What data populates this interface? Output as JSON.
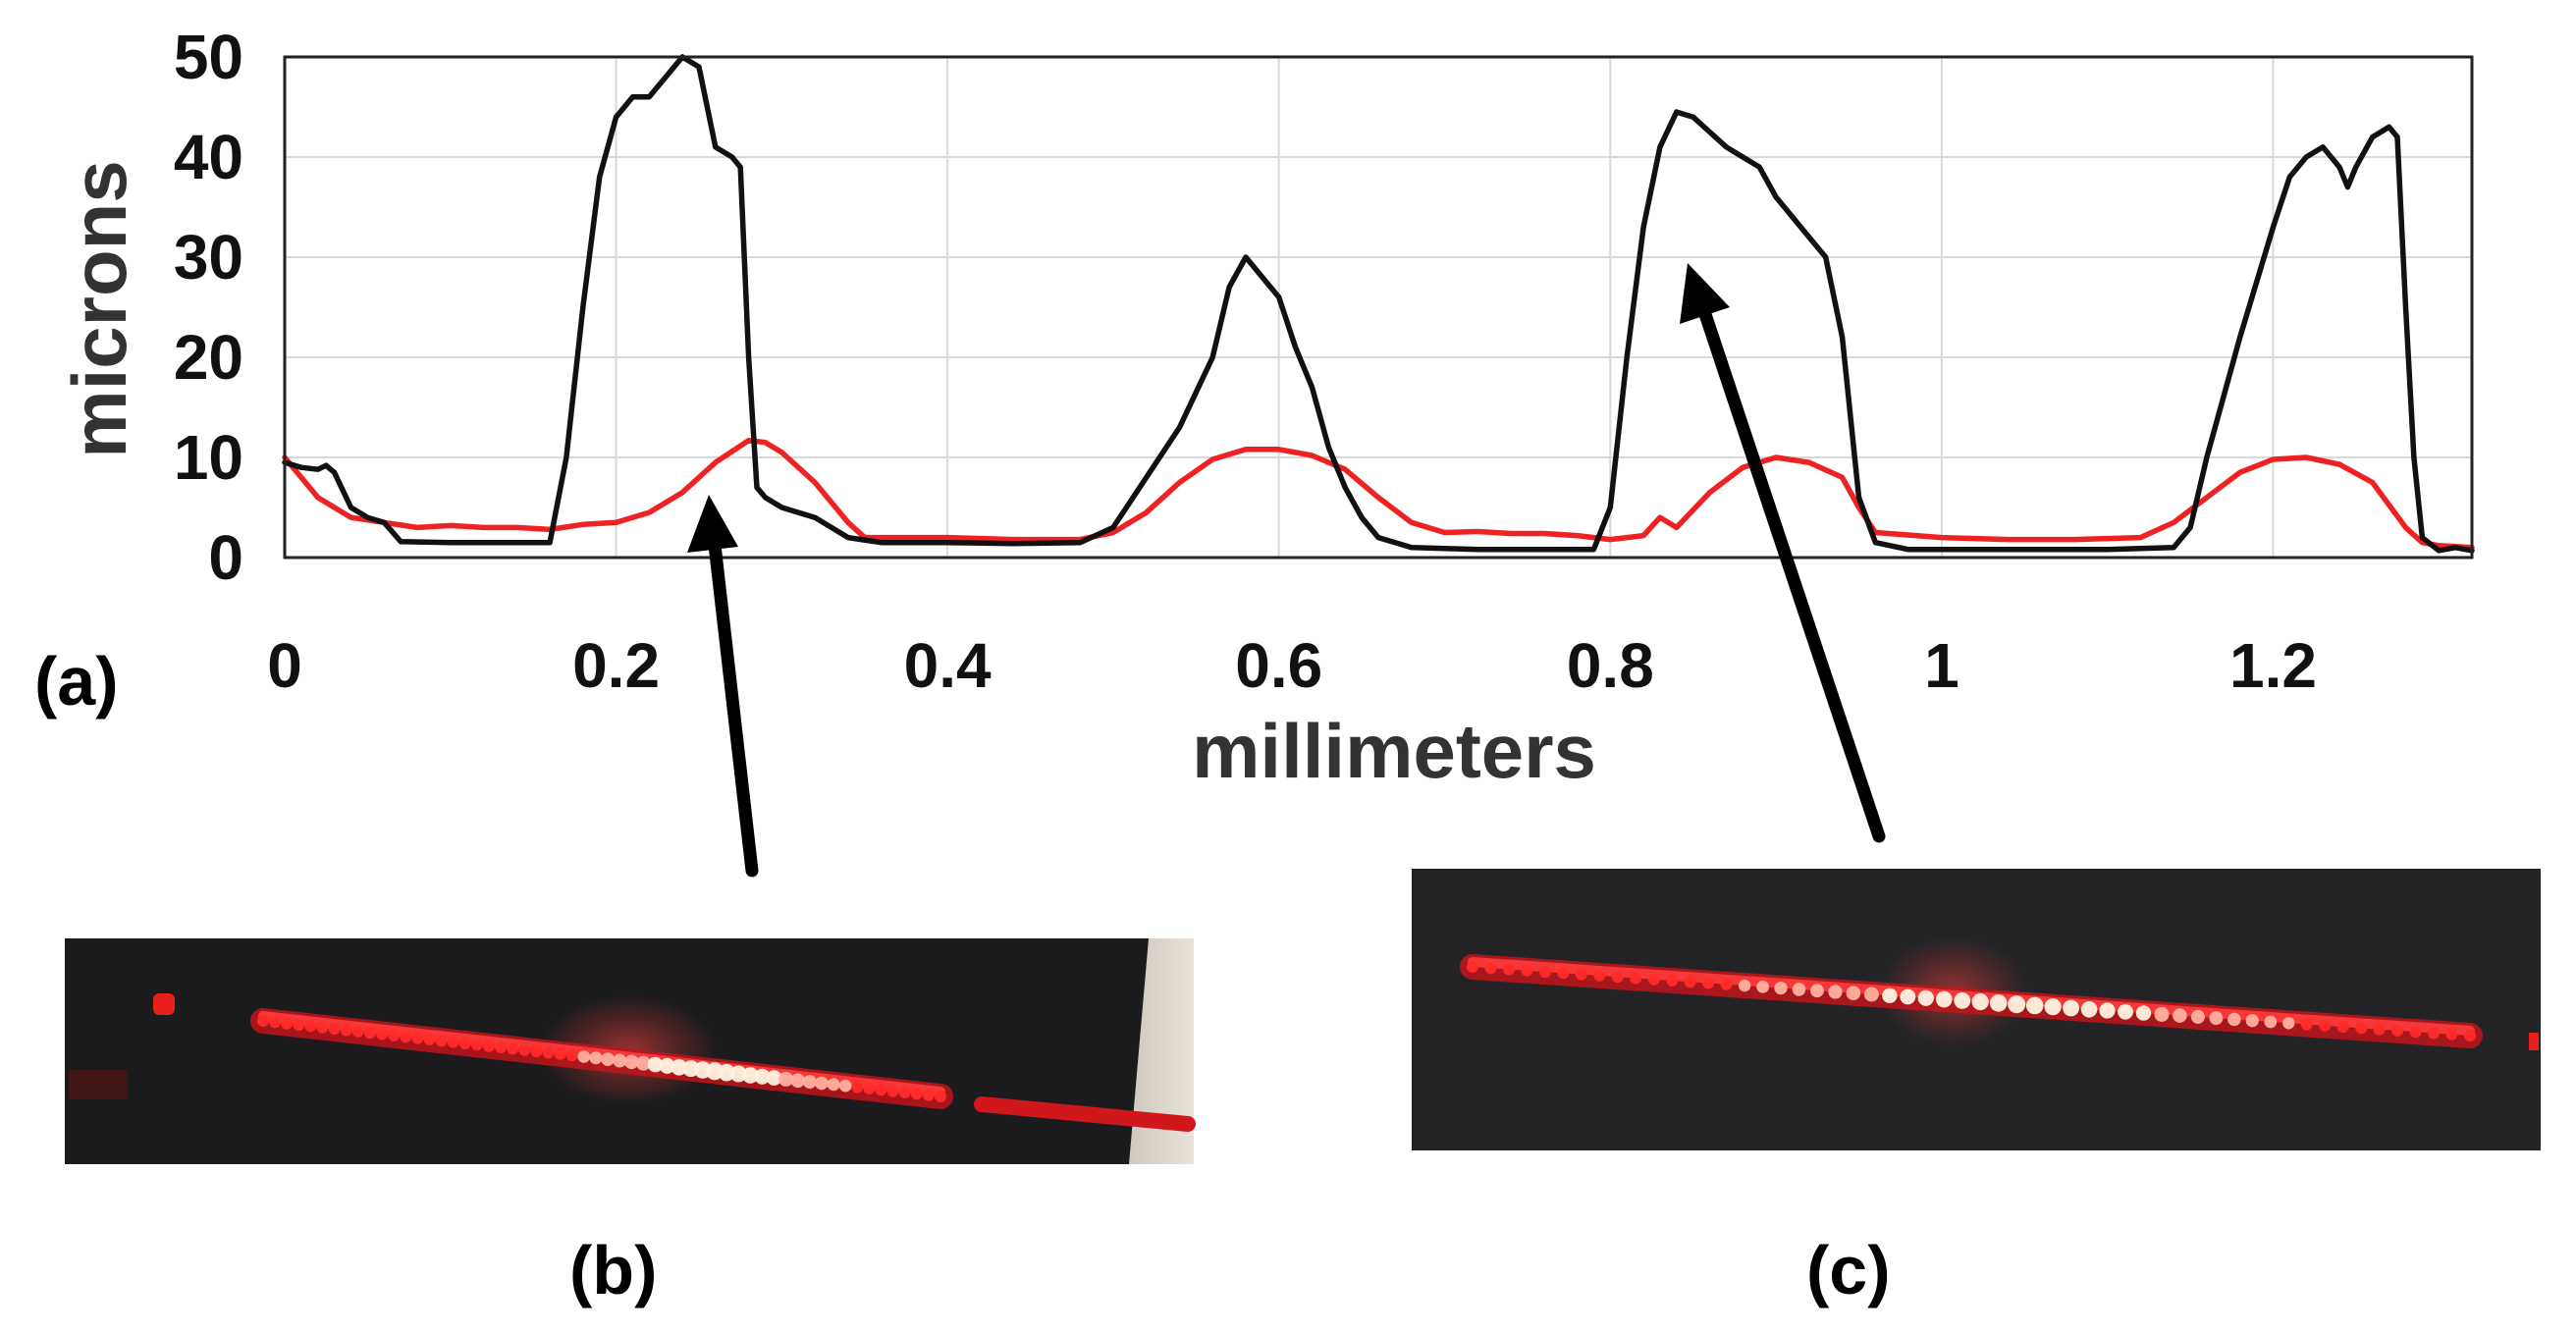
{
  "chart_data": {
    "type": "line",
    "xlabel": "millimeters",
    "ylabel": "microns",
    "xlim": [
      0,
      1.32
    ],
    "ylim": [
      0,
      50
    ],
    "grid": true,
    "x_ticks": [
      "0",
      "0.2",
      "0.4",
      "0.6",
      "0.8",
      "1",
      "1.2"
    ],
    "x_tick_values": [
      0,
      0.2,
      0.4,
      0.6,
      0.8,
      1.0,
      1.2
    ],
    "y_ticks": [
      "0",
      "10",
      "20",
      "30",
      "40",
      "50"
    ],
    "y_tick_values": [
      0,
      10,
      20,
      30,
      40,
      50
    ],
    "series": [
      {
        "name": "black profile",
        "color": "#111111",
        "points": [
          [
            0,
            9.5
          ],
          [
            0.01,
            9
          ],
          [
            0.02,
            8.8
          ],
          [
            0.025,
            9.2
          ],
          [
            0.03,
            8.5
          ],
          [
            0.04,
            5
          ],
          [
            0.05,
            4
          ],
          [
            0.06,
            3.5
          ],
          [
            0.07,
            1.6
          ],
          [
            0.1,
            1.5
          ],
          [
            0.13,
            1.5
          ],
          [
            0.16,
            1.5
          ],
          [
            0.17,
            10
          ],
          [
            0.18,
            25
          ],
          [
            0.19,
            38
          ],
          [
            0.2,
            44
          ],
          [
            0.21,
            46
          ],
          [
            0.22,
            46
          ],
          [
            0.23,
            48
          ],
          [
            0.24,
            50
          ],
          [
            0.25,
            49
          ],
          [
            0.26,
            41
          ],
          [
            0.27,
            40
          ],
          [
            0.275,
            39
          ],
          [
            0.28,
            20
          ],
          [
            0.285,
            7
          ],
          [
            0.29,
            6
          ],
          [
            0.3,
            5
          ],
          [
            0.32,
            4
          ],
          [
            0.34,
            2
          ],
          [
            0.36,
            1.5
          ],
          [
            0.4,
            1.5
          ],
          [
            0.44,
            1.4
          ],
          [
            0.48,
            1.5
          ],
          [
            0.5,
            3
          ],
          [
            0.52,
            8
          ],
          [
            0.54,
            13
          ],
          [
            0.56,
            20
          ],
          [
            0.57,
            27
          ],
          [
            0.58,
            30
          ],
          [
            0.59,
            28
          ],
          [
            0.6,
            26
          ],
          [
            0.61,
            21
          ],
          [
            0.62,
            17
          ],
          [
            0.63,
            11
          ],
          [
            0.64,
            7
          ],
          [
            0.65,
            4
          ],
          [
            0.66,
            2
          ],
          [
            0.68,
            1
          ],
          [
            0.72,
            0.8
          ],
          [
            0.76,
            0.8
          ],
          [
            0.79,
            0.8
          ],
          [
            0.8,
            5
          ],
          [
            0.81,
            20
          ],
          [
            0.82,
            33
          ],
          [
            0.83,
            41
          ],
          [
            0.84,
            44.5
          ],
          [
            0.85,
            44
          ],
          [
            0.86,
            42.5
          ],
          [
            0.87,
            41
          ],
          [
            0.88,
            40
          ],
          [
            0.89,
            39
          ],
          [
            0.9,
            36
          ],
          [
            0.91,
            34
          ],
          [
            0.92,
            32
          ],
          [
            0.93,
            30
          ],
          [
            0.94,
            22
          ],
          [
            0.95,
            6
          ],
          [
            0.96,
            1.5
          ],
          [
            0.98,
            0.8
          ],
          [
            1.02,
            0.8
          ],
          [
            1.06,
            0.8
          ],
          [
            1.1,
            0.8
          ],
          [
            1.14,
            1
          ],
          [
            1.15,
            3
          ],
          [
            1.16,
            10
          ],
          [
            1.18,
            22
          ],
          [
            1.2,
            33
          ],
          [
            1.21,
            38
          ],
          [
            1.22,
            40
          ],
          [
            1.23,
            41
          ],
          [
            1.24,
            39
          ],
          [
            1.245,
            37
          ],
          [
            1.25,
            39
          ],
          [
            1.26,
            42
          ],
          [
            1.27,
            43
          ],
          [
            1.275,
            42
          ],
          [
            1.28,
            25
          ],
          [
            1.285,
            10
          ],
          [
            1.29,
            2
          ],
          [
            1.3,
            0.7
          ],
          [
            1.31,
            1
          ],
          [
            1.32,
            0.7
          ]
        ]
      },
      {
        "name": "red profile",
        "color": "#ee2222",
        "points": [
          [
            0,
            10
          ],
          [
            0.01,
            8
          ],
          [
            0.02,
            6
          ],
          [
            0.03,
            5
          ],
          [
            0.04,
            4
          ],
          [
            0.06,
            3.5
          ],
          [
            0.08,
            3
          ],
          [
            0.1,
            3.2
          ],
          [
            0.12,
            3
          ],
          [
            0.14,
            3
          ],
          [
            0.16,
            2.8
          ],
          [
            0.18,
            3.3
          ],
          [
            0.2,
            3.5
          ],
          [
            0.22,
            4.5
          ],
          [
            0.24,
            6.5
          ],
          [
            0.26,
            9.5
          ],
          [
            0.28,
            11.7
          ],
          [
            0.29,
            11.5
          ],
          [
            0.3,
            10.5
          ],
          [
            0.32,
            7.5
          ],
          [
            0.34,
            3.5
          ],
          [
            0.35,
            2
          ],
          [
            0.36,
            2
          ],
          [
            0.4,
            2
          ],
          [
            0.44,
            1.8
          ],
          [
            0.48,
            1.8
          ],
          [
            0.5,
            2.5
          ],
          [
            0.52,
            4.5
          ],
          [
            0.54,
            7.5
          ],
          [
            0.56,
            9.8
          ],
          [
            0.58,
            10.8
          ],
          [
            0.6,
            10.8
          ],
          [
            0.62,
            10.2
          ],
          [
            0.64,
            8.8
          ],
          [
            0.66,
            6
          ],
          [
            0.68,
            3.5
          ],
          [
            0.7,
            2.5
          ],
          [
            0.72,
            2.6
          ],
          [
            0.74,
            2.4
          ],
          [
            0.76,
            2.4
          ],
          [
            0.78,
            2.2
          ],
          [
            0.8,
            1.8
          ],
          [
            0.82,
            2.2
          ],
          [
            0.83,
            4
          ],
          [
            0.84,
            3
          ],
          [
            0.86,
            6.5
          ],
          [
            0.88,
            9
          ],
          [
            0.9,
            10
          ],
          [
            0.92,
            9.5
          ],
          [
            0.94,
            8
          ],
          [
            0.95,
            5
          ],
          [
            0.96,
            2.5
          ],
          [
            1,
            2
          ],
          [
            1.04,
            1.8
          ],
          [
            1.08,
            1.8
          ],
          [
            1.12,
            2
          ],
          [
            1.14,
            3.5
          ],
          [
            1.16,
            6
          ],
          [
            1.18,
            8.5
          ],
          [
            1.2,
            9.8
          ],
          [
            1.22,
            10
          ],
          [
            1.24,
            9.3
          ],
          [
            1.26,
            7.5
          ],
          [
            1.28,
            3
          ],
          [
            1.29,
            1.5
          ],
          [
            1.3,
            1.2
          ],
          [
            1.32,
            1
          ]
        ]
      }
    ]
  },
  "panels": {
    "a": "(a)",
    "b": "(b)",
    "c": "(c)"
  },
  "photos": {
    "b": {
      "bead_spots": 58,
      "beam_color": "#ff2a2a"
    },
    "c": {
      "bead_spots": 56,
      "beam_color": "#ff2a2a"
    }
  }
}
